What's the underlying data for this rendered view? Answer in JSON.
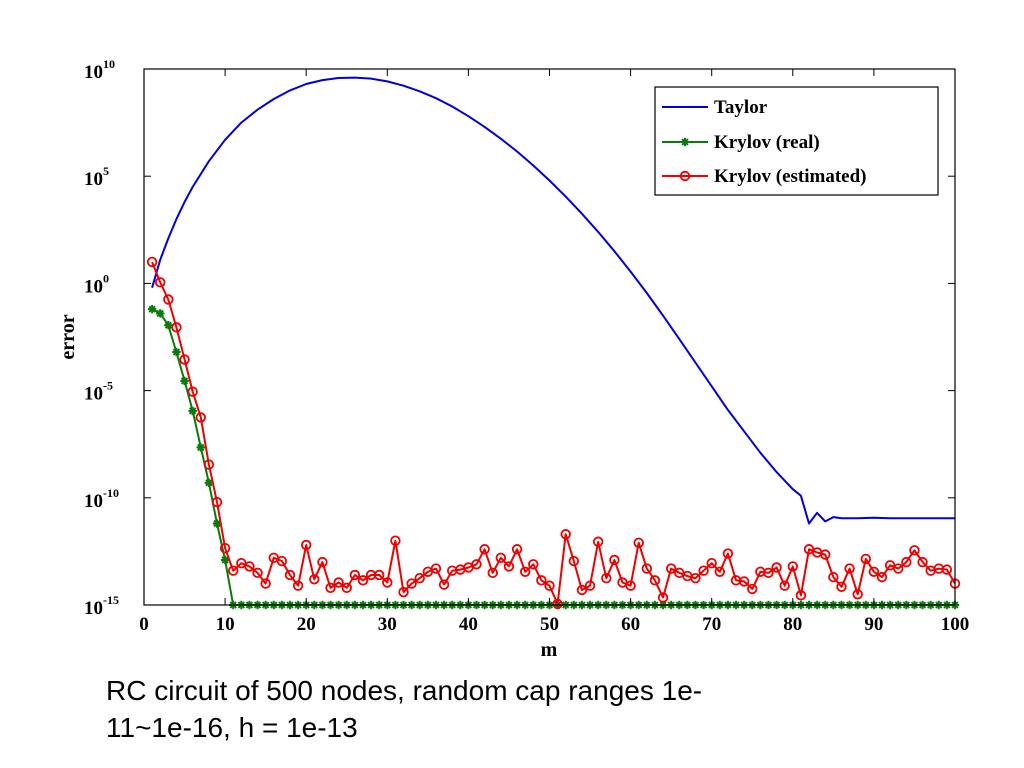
{
  "chart_data": {
    "type": "line",
    "xlabel": "m",
    "ylabel": "error",
    "xlim": [
      0,
      100
    ],
    "ylim_log10": [
      -15,
      10
    ],
    "yscale": "log",
    "xticks": [
      "0",
      "10",
      "20",
      "30",
      "40",
      "50",
      "60",
      "70",
      "80",
      "90",
      "100"
    ],
    "yticks": [
      {
        "base": "10",
        "exp": "10",
        "value_log10": 10
      },
      {
        "base": "10",
        "exp": "5",
        "value_log10": 5
      },
      {
        "base": "10",
        "exp": "0",
        "value_log10": 0
      },
      {
        "base": "10",
        "exp": "-5",
        "value_log10": -5
      },
      {
        "base": "10",
        "exp": "-10",
        "value_log10": -10
      },
      {
        "base": "10",
        "exp": "-15",
        "value_log10": -15
      }
    ],
    "legend_position": "top-right",
    "grid": false,
    "series": [
      {
        "name": "Taylor",
        "color": "#0000dd",
        "marker": "none",
        "x": [
          1,
          2,
          3,
          4,
          5,
          6,
          8,
          10,
          12,
          14,
          16,
          18,
          20,
          22,
          24,
          26,
          28,
          30,
          32,
          34,
          36,
          38,
          40,
          42,
          44,
          46,
          48,
          50,
          52,
          54,
          56,
          58,
          60,
          62,
          64,
          66,
          68,
          70,
          72,
          74,
          76,
          78,
          80,
          81,
          82,
          83,
          84,
          85,
          86,
          88,
          90,
          92,
          94,
          96,
          98,
          100
        ],
        "log10_y": [
          -0.2,
          1.1,
          2.1,
          3.0,
          3.8,
          4.5,
          5.7,
          6.7,
          7.5,
          8.1,
          8.6,
          9.0,
          9.3,
          9.48,
          9.58,
          9.6,
          9.55,
          9.42,
          9.22,
          8.96,
          8.64,
          8.25,
          7.8,
          7.3,
          6.75,
          6.15,
          5.5,
          4.8,
          4.05,
          3.25,
          2.4,
          1.5,
          0.55,
          -0.45,
          -1.5,
          -2.6,
          -3.7,
          -4.8,
          -5.9,
          -6.9,
          -7.9,
          -8.8,
          -9.6,
          -9.9,
          -11.2,
          -10.7,
          -11.1,
          -10.9,
          -10.95,
          -10.95,
          -10.93,
          -10.95,
          -10.95,
          -10.95,
          -10.95,
          -10.95
        ]
      },
      {
        "name": "Krylov (real)",
        "color": "#0a7a0a",
        "marker": "asterisk",
        "x": [
          1,
          2,
          3,
          4,
          5,
          6,
          7,
          8,
          9,
          10,
          11,
          12,
          13,
          14,
          15,
          16,
          17,
          18,
          19,
          20,
          21,
          22,
          23,
          24,
          25,
          26,
          27,
          28,
          29,
          30,
          31,
          32,
          33,
          34,
          35,
          36,
          37,
          38,
          39,
          40,
          41,
          42,
          43,
          44,
          45,
          46,
          47,
          48,
          49,
          50,
          51,
          52,
          53,
          54,
          55,
          56,
          57,
          58,
          59,
          60,
          61,
          62,
          63,
          64,
          65,
          66,
          67,
          68,
          69,
          70,
          71,
          72,
          73,
          74,
          75,
          76,
          77,
          78,
          79,
          80,
          81,
          82,
          83,
          84,
          85,
          86,
          87,
          88,
          89,
          90,
          91,
          92,
          93,
          94,
          95,
          96,
          97,
          98,
          99,
          100
        ],
        "log10_y": [
          -1.2,
          -1.4,
          -1.95,
          -3.2,
          -4.55,
          -5.95,
          -7.65,
          -9.3,
          -11.2,
          -12.9,
          -15.0,
          -15,
          -15,
          -15,
          -15,
          -15,
          -15,
          -15,
          -15,
          -15,
          -15,
          -15,
          -15,
          -15,
          -15,
          -15,
          -15,
          -15,
          -15,
          -15,
          -15,
          -15,
          -15,
          -15,
          -15,
          -15,
          -15,
          -15,
          -15,
          -15,
          -15,
          -15,
          -15,
          -15,
          -15,
          -15,
          -15,
          -15,
          -15,
          -15,
          -15,
          -15,
          -15,
          -15,
          -15,
          -15,
          -15,
          -15,
          -15,
          -15,
          -15,
          -15,
          -15,
          -15,
          -15,
          -15,
          -15,
          -15,
          -15,
          -15,
          -15,
          -15,
          -15,
          -15,
          -15,
          -15,
          -15,
          -15,
          -15,
          -15,
          -15,
          -15,
          -15,
          -15,
          -15,
          -15,
          -15,
          -15,
          -15,
          -15,
          -15,
          -15,
          -15,
          -15,
          -15,
          -15,
          -15,
          -15,
          -15,
          -15
        ]
      },
      {
        "name": "Krylov (estimated)",
        "color": "#ee0000",
        "marker": "circle",
        "x": [
          1,
          2,
          3,
          4,
          5,
          6,
          7,
          8,
          9,
          10,
          11,
          12,
          13,
          14,
          15,
          16,
          17,
          18,
          19,
          20,
          21,
          22,
          23,
          24,
          25,
          26,
          27,
          28,
          29,
          30,
          31,
          32,
          33,
          34,
          35,
          36,
          37,
          38,
          39,
          40,
          41,
          42,
          43,
          44,
          45,
          46,
          47,
          48,
          49,
          50,
          51,
          52,
          53,
          54,
          55,
          56,
          57,
          58,
          59,
          60,
          61,
          62,
          63,
          64,
          65,
          66,
          67,
          68,
          69,
          70,
          71,
          72,
          73,
          74,
          75,
          76,
          77,
          78,
          79,
          80,
          81,
          82,
          83,
          84,
          85,
          86,
          87,
          88,
          89,
          90,
          91,
          92,
          93,
          94,
          95,
          96,
          97,
          98,
          99,
          100
        ],
        "log10_y": [
          1.0,
          0.05,
          -0.75,
          -2.05,
          -3.55,
          -5.05,
          -6.25,
          -8.45,
          -10.2,
          -12.35,
          -13.4,
          -13.05,
          -13.2,
          -13.5,
          -14.0,
          -12.8,
          -12.95,
          -13.6,
          -14.1,
          -12.2,
          -13.8,
          -13.0,
          -14.2,
          -13.95,
          -14.2,
          -13.6,
          -13.85,
          -13.6,
          -13.6,
          -13.95,
          -12.0,
          -14.4,
          -14.0,
          -13.75,
          -13.45,
          -13.3,
          -14.05,
          -13.4,
          -13.35,
          -13.25,
          -13.1,
          -12.4,
          -13.5,
          -12.8,
          -13.2,
          -12.4,
          -13.45,
          -13.1,
          -13.85,
          -14.1,
          -14.95,
          -11.7,
          -12.95,
          -14.3,
          -14.1,
          -12.05,
          -13.75,
          -12.9,
          -13.95,
          -14.1,
          -12.1,
          -13.3,
          -13.85,
          -14.65,
          -13.3,
          -13.5,
          -13.65,
          -13.75,
          -13.4,
          -13.05,
          -13.45,
          -12.6,
          -13.85,
          -13.9,
          -14.25,
          -13.45,
          -13.5,
          -13.25,
          -14.1,
          -13.2,
          -14.55,
          -12.4,
          -12.55,
          -12.65,
          -13.7,
          -14.15,
          -13.3,
          -14.5,
          -12.85,
          -13.45,
          -13.7,
          -13.15,
          -13.3,
          -13.0,
          -12.45,
          -13.0,
          -13.4,
          -13.3,
          -13.35,
          -14.0
        ]
      }
    ]
  },
  "caption": {
    "line1": "RC circuit of 500 nodes, random cap ranges 1e-",
    "line2": "11~1e-16, h = 1e-13"
  }
}
